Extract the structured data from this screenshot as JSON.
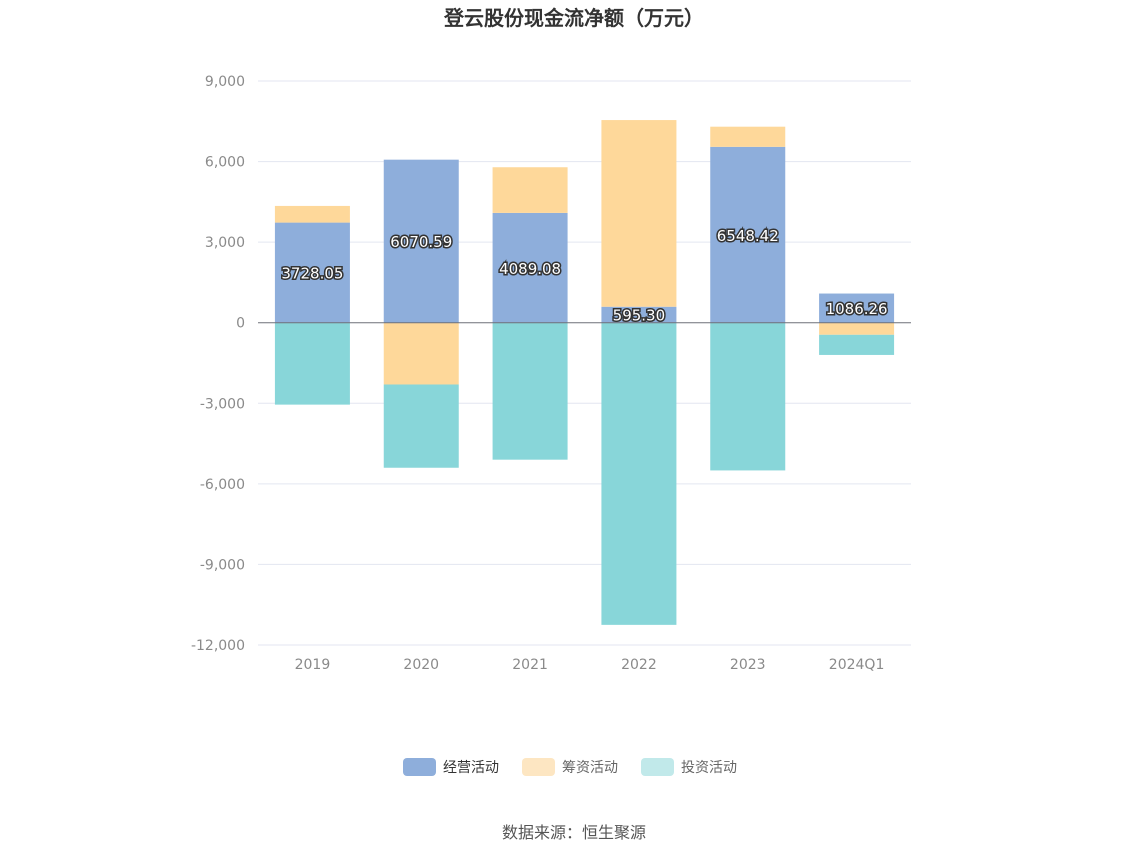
{
  "chart_data": {
    "type": "bar",
    "stacked": true,
    "title": "登云股份现金流净额（万元）",
    "categories": [
      "2019",
      "2020",
      "2021",
      "2022",
      "2023",
      "2024Q1"
    ],
    "series": [
      {
        "name": "经营活动",
        "color": "#8eaedb",
        "values": [
          3728.05,
          6070.59,
          4089.08,
          595.3,
          6548.42,
          1086.26
        ],
        "labels": [
          "3728.05",
          "6070.59",
          "4089.08",
          "595.30",
          "6548.42",
          "1086.26"
        ]
      },
      {
        "name": "筹资活动",
        "color": "#fed89a",
        "values": [
          620,
          -2300,
          1700,
          6950,
          750,
          -450
        ]
      },
      {
        "name": "投资活动",
        "color": "#88d6d9",
        "values": [
          -3050,
          -3100,
          -5100,
          -11250,
          -5500,
          -750
        ]
      }
    ],
    "ylim": [
      -12000,
      9000
    ],
    "yticks": [
      9000,
      6000,
      3000,
      0,
      -3000,
      -6000,
      -9000,
      -12000
    ],
    "ytick_labels": [
      "9,000",
      "6,000",
      "3,000",
      "0",
      "-3,000",
      "-6,000",
      "-9,000",
      "-12,000"
    ],
    "grid": true,
    "legend_position": "bottom"
  },
  "source": "数据来源：恒生聚源",
  "colors": {
    "grid": "#e3e6f0",
    "zero_line": "#6e7079",
    "legend_inactive_1": "#fde6c2",
    "legend_inactive_2": "#c1e9ea"
  }
}
